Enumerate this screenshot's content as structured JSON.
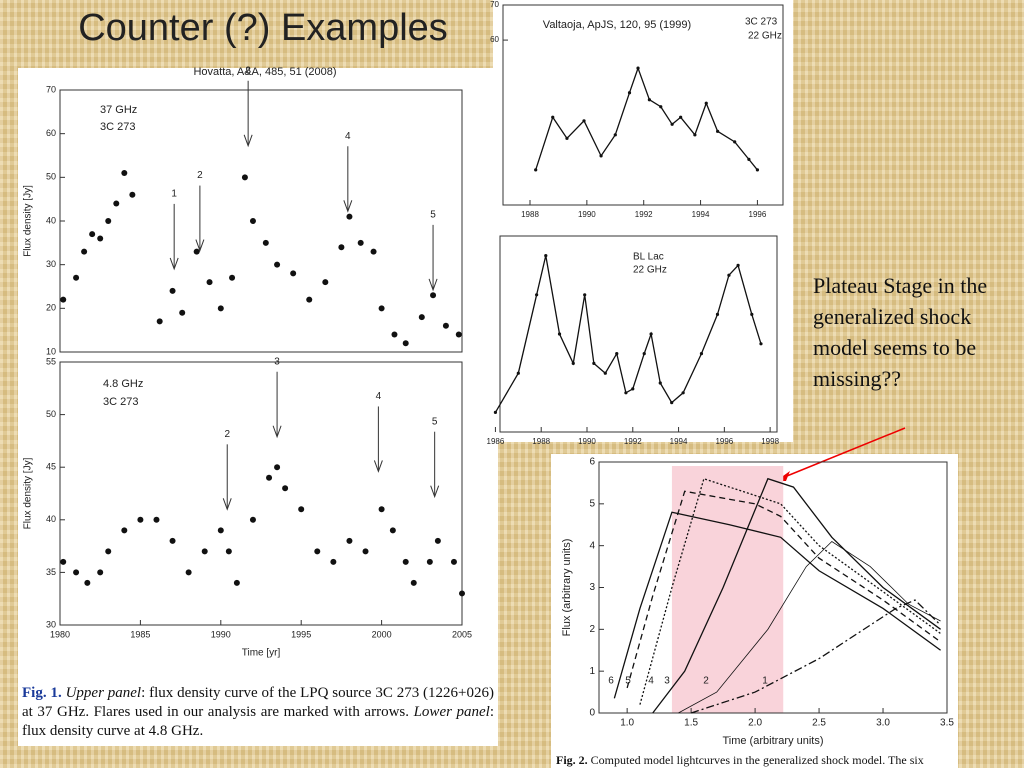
{
  "slide": {
    "title": "Counter (?) Examples",
    "note": "Plateau Stage in the generalized shock model seems to be missing??"
  },
  "chart_data": [
    {
      "type": "scatter",
      "source": "Hovatta, A&A, 485, 51 (2008)",
      "ylabel": "Flux density [Jy]",
      "labels": [
        "37 GHz",
        "3C 273"
      ],
      "color": "#111111",
      "xlim": [
        1980,
        2005
      ],
      "ylim": [
        10,
        70
      ],
      "yticks": [
        10,
        20,
        30,
        40,
        50,
        60,
        70
      ],
      "x": [
        1980.2,
        1981,
        1981.5,
        1982,
        1982.5,
        1983,
        1983.5,
        1984,
        1984.5,
        1986.2,
        1987,
        1987.6,
        1988.5,
        1989.3,
        1990,
        1990.7,
        1991.5,
        1992,
        1992.8,
        1993.5,
        1994.5,
        1995.5,
        1996.5,
        1997.5,
        1998,
        1998.7,
        1999.5,
        2000,
        2000.8,
        2001.5,
        2002.5,
        2003.2,
        2004,
        2004.8
      ],
      "values": [
        22,
        27,
        33,
        37,
        36,
        40,
        44,
        51,
        46,
        17,
        24,
        19,
        33,
        26,
        20,
        27,
        50,
        40,
        35,
        30,
        28,
        22,
        26,
        34,
        41,
        35,
        33,
        20,
        14,
        12,
        18,
        23,
        16,
        14
      ],
      "arrows": [
        {
          "text": "1",
          "x": 1987.1,
          "y": 28.8
        },
        {
          "text": "2",
          "x": 1988.7,
          "y": 33
        },
        {
          "text": "3",
          "x": 1991.7,
          "y": 57
        },
        {
          "text": "4",
          "x": 1997.9,
          "y": 42
        },
        {
          "text": "5",
          "x": 2003.2,
          "y": 24
        }
      ]
    },
    {
      "type": "scatter",
      "ylabel": "Flux density [Jy]",
      "xlabel": "Time [yr]",
      "labels": [
        "4.8 GHz",
        "3C 273"
      ],
      "color": "#111111",
      "xlim": [
        1980,
        2005
      ],
      "ylim": [
        30,
        55
      ],
      "yticks": [
        30,
        35,
        40,
        45,
        50,
        55
      ],
      "xticks": [
        1980,
        1985,
        1990,
        1995,
        2000,
        2005
      ],
      "x": [
        1980.2,
        1981,
        1981.7,
        1982.5,
        1983,
        1984,
        1985,
        1986,
        1987,
        1988,
        1989,
        1990,
        1990.5,
        1991,
        1992,
        1993,
        1993.5,
        1994,
        1995,
        1996,
        1997,
        1998,
        1999,
        2000,
        2000.7,
        2001.5,
        2002,
        2003,
        2003.5,
        2004.5,
        2005
      ],
      "values": [
        36,
        35,
        34,
        35,
        37,
        39,
        40,
        40,
        38,
        35,
        37,
        39,
        37,
        34,
        40,
        44,
        45,
        43,
        41,
        37,
        36,
        38,
        37,
        41,
        39,
        36,
        34,
        36,
        38,
        36,
        33
      ],
      "arrows": [
        {
          "text": "2",
          "x": 1990.4,
          "y": 40.9
        },
        {
          "text": "3",
          "x": 1993.5,
          "y": 47.8
        },
        {
          "text": "4",
          "x": 1999.8,
          "y": 44.5
        },
        {
          "text": "5",
          "x": 2003.3,
          "y": 42.1
        }
      ],
      "caption": [
        "Fig. 1.",
        "Upper panel",
        ": flux density curve of the LPQ source 3C 273 (1226+026) at 37 GHz. Flares used in our analysis are marked with arrows.",
        "Lower panel",
        ": flux density curve at 4.8 GHz."
      ]
    },
    {
      "type": "line",
      "source": "Valtaoja, ApJS, 120, 95 (1999)",
      "labels": [
        "3C 273",
        "22 GHz"
      ],
      "color": "#111111",
      "xlim": [
        1987.05,
        1996.9
      ],
      "ylim": [
        13,
        70
      ],
      "yticks": [
        60,
        70
      ],
      "xticks": [
        1988,
        1990,
        1992,
        1994,
        1996
      ],
      "x": [
        1988.2,
        1988.8,
        1989.3,
        1989.9,
        1990.5,
        1991,
        1991.5,
        1991.8,
        1992.2,
        1992.6,
        1993,
        1993.3,
        1993.8,
        1994.2,
        1994.6,
        1995.2,
        1995.7,
        1996
      ],
      "values": [
        23,
        38,
        32,
        37,
        27,
        33,
        45,
        52,
        43,
        41,
        36,
        38,
        33,
        42,
        34,
        31,
        26,
        23
      ]
    },
    {
      "type": "line",
      "labels": [
        "BL Lac",
        "22 GHz"
      ],
      "color": "#111111",
      "xlim": [
        1986.2,
        1998.3
      ],
      "ylim": [
        0,
        10
      ],
      "xticks": [
        1986,
        1988,
        1990,
        1992,
        1994,
        1996,
        1998
      ],
      "x": [
        1986,
        1987,
        1987.8,
        1988.2,
        1988.8,
        1989.4,
        1989.9,
        1990.3,
        1990.8,
        1991.3,
        1991.7,
        1992,
        1992.5,
        1992.8,
        1993.2,
        1993.7,
        1994.2,
        1995,
        1995.7,
        1996.2,
        1996.6,
        1997.2,
        1997.6
      ],
      "values": [
        1,
        3,
        7,
        9,
        5,
        3.5,
        7,
        3.5,
        3,
        4,
        2,
        2.2,
        4,
        5,
        2.5,
        1.5,
        2,
        4,
        6,
        8,
        8.5,
        6,
        4.5
      ]
    },
    {
      "type": "line",
      "xlabel": "Time (arbitrary units)",
      "ylabel": "Flux (arbitrary units)",
      "color": "#111111",
      "highlight": [
        1.35,
        2.22
      ],
      "highlight_color": "#f9d3da",
      "xlim": [
        0.78,
        3.5
      ],
      "ylim": [
        0,
        6
      ],
      "yticks": [
        0,
        1,
        2,
        3,
        4,
        5,
        6
      ],
      "xticks": [
        {
          "value": 1,
          "label": "1.0"
        },
        1.5,
        {
          "value": 2,
          "label": "2.0"
        },
        2.5,
        {
          "value": 3,
          "label": "3.0"
        },
        3.5
      ],
      "series": [
        {
          "name": "6",
          "style": "solid",
          "x": [
            0.9,
            1.1,
            1.35,
            1.8,
            2.2,
            2.5,
            3.0,
            3.45
          ],
          "values": [
            0.35,
            2.5,
            4.8,
            4.5,
            4.2,
            3.4,
            2.5,
            1.5
          ]
        },
        {
          "name": "5",
          "style": "dashed",
          "x": [
            1.0,
            1.2,
            1.45,
            2.0,
            2.2,
            2.5,
            3.0,
            3.45
          ],
          "values": [
            0.6,
            2.8,
            5.3,
            5.0,
            4.7,
            3.7,
            2.7,
            1.7
          ]
        },
        {
          "name": "4",
          "style": "dotted",
          "x": [
            1.1,
            1.35,
            1.6,
            2.0,
            2.2,
            2.5,
            3.0,
            3.45
          ],
          "values": [
            0.2,
            3,
            5.6,
            5.2,
            5.0,
            4,
            2.9,
            1.9
          ]
        },
        {
          "name": "3",
          "style": "solid",
          "x": [
            1.2,
            1.45,
            1.75,
            2.1,
            2.3,
            2.6,
            3.0,
            3.45
          ],
          "values": [
            0,
            1,
            3,
            5.6,
            5.4,
            4.2,
            3,
            2
          ]
        },
        {
          "name": "2",
          "style": "thin",
          "x": [
            1.4,
            1.7,
            2.1,
            2.4,
            2.6,
            2.9,
            3.2,
            3.45
          ],
          "values": [
            0,
            0.5,
            2,
            3.5,
            4.1,
            3.5,
            2.6,
            2.2
          ]
        },
        {
          "name": "1",
          "style": "dashdot",
          "x": [
            1.5,
            2.0,
            2.5,
            3.1,
            3.25,
            3.45
          ],
          "values": [
            0,
            0.5,
            1.3,
            2.5,
            2.7,
            2.1
          ]
        }
      ],
      "caption": [
        "Fig. 2.",
        "Computed model lightcurves in the generalized shock model. The six"
      ]
    }
  ]
}
